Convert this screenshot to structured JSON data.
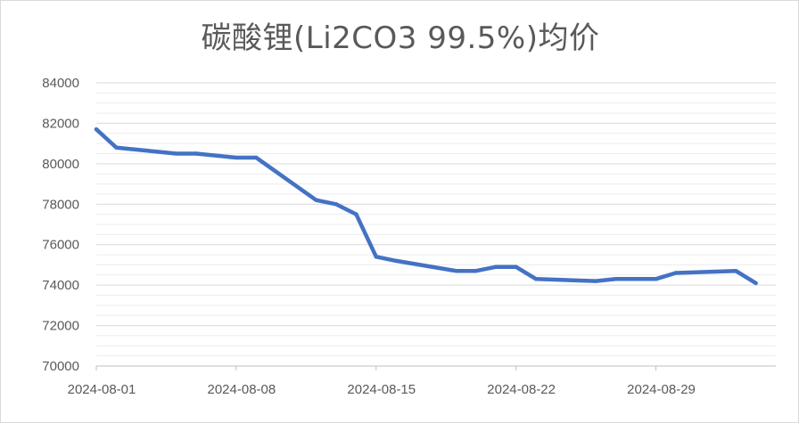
{
  "chart_data": {
    "type": "line",
    "title": "碳酸锂(Li2CO3 99.5%)均价",
    "xlabel": "",
    "ylabel": "",
    "ylim": [
      70000,
      84000
    ],
    "yticks": [
      70000,
      72000,
      74000,
      76000,
      78000,
      80000,
      82000,
      84000
    ],
    "ytick_labels": [
      "70000",
      "72000",
      "74000",
      "76000",
      "78000",
      "80000",
      "82000",
      "84000"
    ],
    "xlim": [
      "2024-08-01",
      "2024-09-04"
    ],
    "xticks": [
      "2024-08-01",
      "2024-08-08",
      "2024-08-15",
      "2024-08-22",
      "2024-08-29"
    ],
    "grid": {
      "major": true,
      "minor": true
    },
    "legend": "none",
    "series": [
      {
        "color": "#4472C4",
        "x": [
          "2024-08-01",
          "2024-08-02",
          "2024-08-05",
          "2024-08-06",
          "2024-08-07",
          "2024-08-08",
          "2024-08-09",
          "2024-08-12",
          "2024-08-13",
          "2024-08-14",
          "2024-08-15",
          "2024-08-16",
          "2024-08-19",
          "2024-08-20",
          "2024-08-21",
          "2024-08-22",
          "2024-08-23",
          "2024-08-26",
          "2024-08-27",
          "2024-08-28",
          "2024-08-29",
          "2024-08-30",
          "2024-09-02",
          "2024-09-03"
        ],
        "values": [
          81700,
          80800,
          80500,
          80500,
          80400,
          80300,
          80300,
          78200,
          78000,
          77500,
          75400,
          75200,
          74700,
          74700,
          74900,
          74900,
          74300,
          74200,
          74300,
          74300,
          74300,
          74600,
          74700,
          74100
        ]
      }
    ]
  }
}
